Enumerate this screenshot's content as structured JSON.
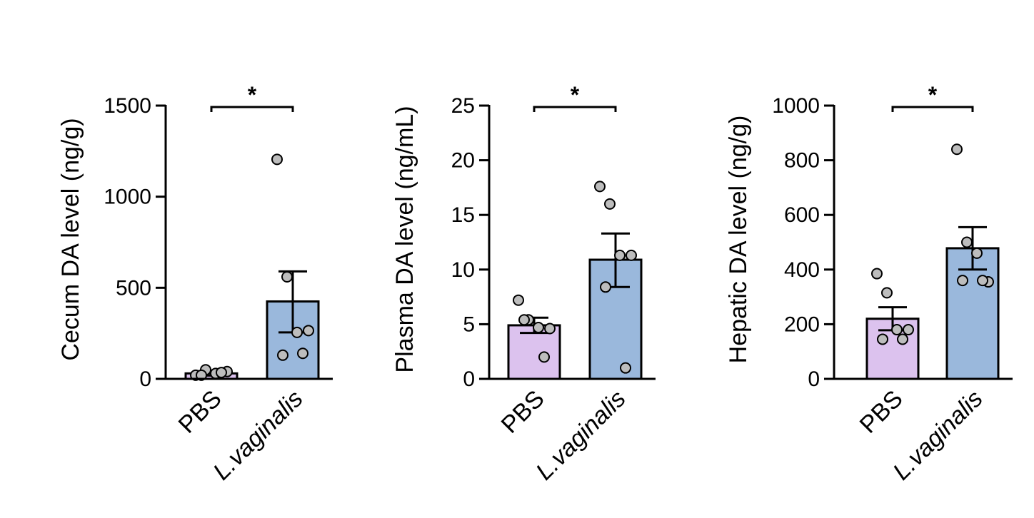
{
  "colors": {
    "pbs_bar": "#dcc2ee",
    "lv_bar": "#9ab8dc",
    "point_fill": "#bdbdbd"
  },
  "chart_data": [
    {
      "type": "bar",
      "categories": [
        "PBS",
        "L.vaginalis"
      ],
      "category_styles": [
        "normal",
        "italic"
      ],
      "ylabel": "Cecum DA level (ng/g)",
      "ylim": [
        0,
        1500
      ],
      "yticks": [
        0,
        500,
        1000,
        1500
      ],
      "values": [
        30,
        425
      ],
      "error_upper": [
        42,
        590
      ],
      "error_lower": [
        18,
        255
      ],
      "points": [
        [
          20,
          50,
          30,
          40,
          20,
          35
        ],
        [
          1205,
          560,
          255,
          265,
          130,
          140
        ]
      ],
      "significance": {
        "label": "*",
        "between": [
          0,
          1
        ]
      }
    },
    {
      "type": "bar",
      "categories": [
        "PBS",
        "L.vaginalis"
      ],
      "category_styles": [
        "normal",
        "italic"
      ],
      "ylabel": "Plasma DA level (ng/mL)",
      "ylim": [
        0,
        25
      ],
      "yticks": [
        0,
        5,
        10,
        15,
        20,
        25
      ],
      "values": [
        4.9,
        10.9
      ],
      "error_upper": [
        5.6,
        13.3
      ],
      "error_lower": [
        4.2,
        8.4
      ],
      "points": [
        [
          7.2,
          5.4,
          4.7,
          4.6,
          5.4,
          2.0
        ],
        [
          17.6,
          16.0,
          11.3,
          11.3,
          8.4,
          1.0
        ]
      ],
      "significance": {
        "label": "*",
        "between": [
          0,
          1
        ]
      }
    },
    {
      "type": "bar",
      "categories": [
        "PBS",
        "L.vaginalis"
      ],
      "category_styles": [
        "normal",
        "italic"
      ],
      "ylabel": "Hepatic DA level (ng/g)",
      "ylim": [
        0,
        1000
      ],
      "yticks": [
        0,
        200,
        400,
        600,
        800,
        1000
      ],
      "values": [
        220,
        478
      ],
      "error_upper": [
        262,
        555
      ],
      "error_lower": [
        178,
        400
      ],
      "points": [
        [
          385,
          315,
          180,
          180,
          145,
          145
        ],
        [
          840,
          500,
          460,
          355,
          360,
          360
        ]
      ],
      "significance": {
        "label": "*",
        "between": [
          0,
          1
        ]
      }
    }
  ]
}
